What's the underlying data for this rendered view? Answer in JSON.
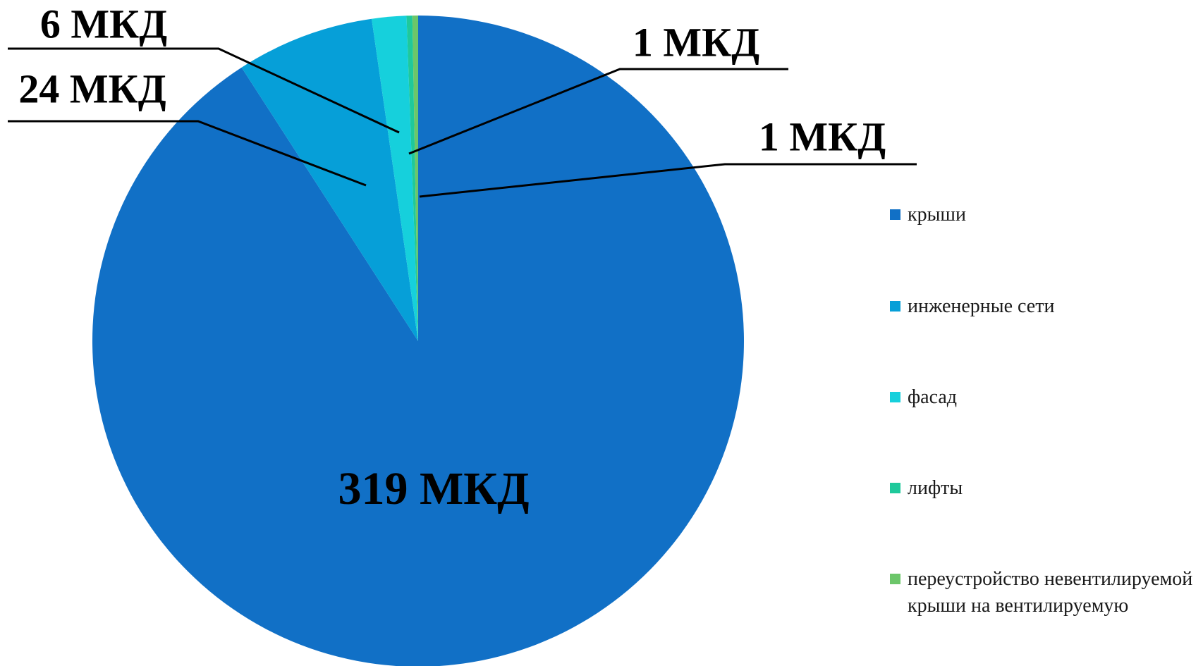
{
  "chart_data": {
    "type": "pie",
    "categories": [
      "крыши",
      "инженерные сети",
      "фасад",
      "лифты",
      "переустройство невентилируемой крыши на вентилируемую"
    ],
    "values": [
      319,
      24,
      6,
      1,
      1
    ],
    "value_labels": [
      "319 МКД",
      "24 МКД",
      "6 МКД",
      "1 МКД",
      "1 МКД"
    ],
    "colors": [
      "#1170c6",
      "#069fd8",
      "#16d0dc",
      "#1fc99b",
      "#6cc66a"
    ]
  }
}
